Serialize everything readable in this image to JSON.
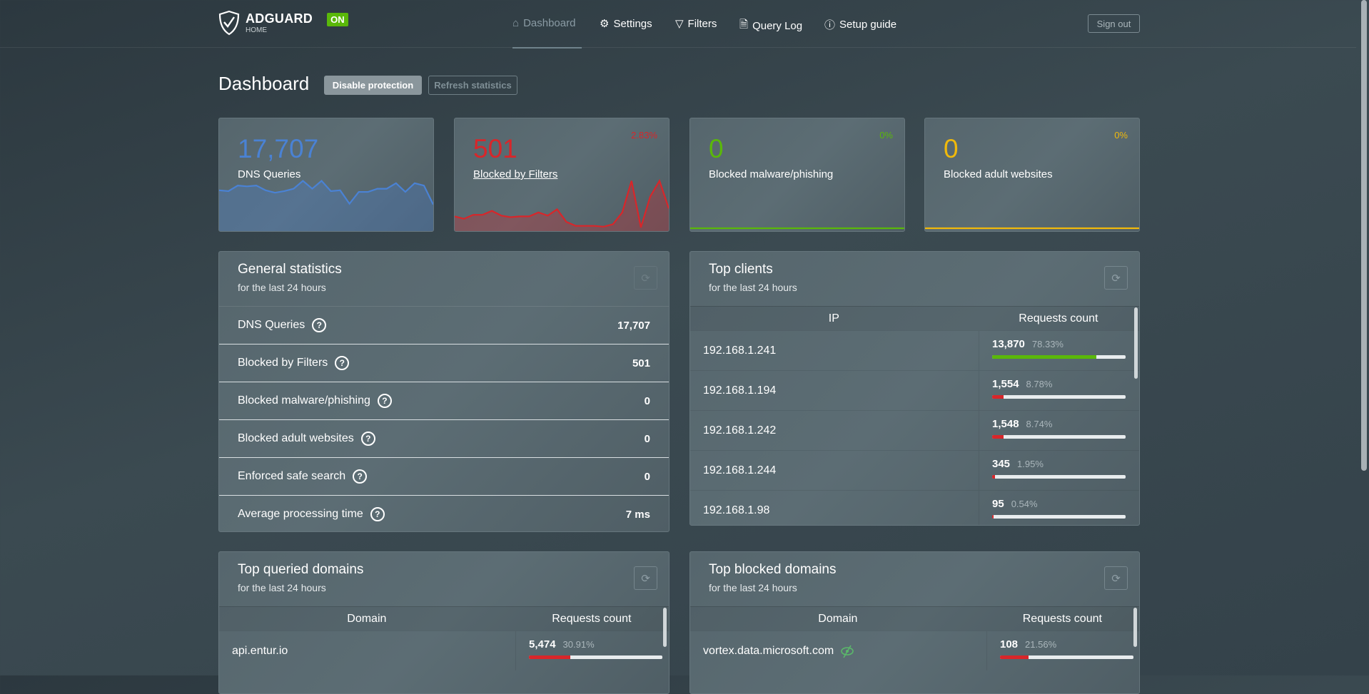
{
  "header": {
    "brand": "ADGUARD",
    "brand_sub": "HOME",
    "status_badge": "ON",
    "nav": [
      {
        "label": "Dashboard",
        "icon": "home-icon"
      },
      {
        "label": "Settings",
        "icon": "gear-icon"
      },
      {
        "label": "Filters",
        "icon": "filter-icon"
      },
      {
        "label": "Query Log",
        "icon": "document-icon"
      },
      {
        "label": "Setup guide",
        "icon": "help-icon"
      }
    ],
    "sign_out": "Sign out"
  },
  "page": {
    "title": "Dashboard",
    "disable_protection": "Disable protection",
    "refresh_statistics": "Refresh statistics"
  },
  "colors": {
    "blue": "#4a82d4",
    "red": "#d8262a",
    "green": "#5ab80a",
    "yellow": "#f0b90b"
  },
  "stats": [
    {
      "value": "17,707",
      "label": "DNS Queries",
      "pct": "",
      "color": "#4a82d4",
      "spark": [
        48,
        47,
        54,
        53,
        54,
        48,
        45,
        47,
        50,
        60,
        50,
        60,
        47,
        48,
        31,
        46,
        46,
        50,
        50,
        57,
        46,
        57,
        54,
        30
      ]
    },
    {
      "value": "501",
      "label": "Blocked by Filters",
      "pct": "2.83%",
      "color": "#d8262a",
      "spark": [
        15,
        12,
        17,
        17,
        22,
        16,
        14,
        15,
        15,
        20,
        16,
        24,
        8,
        3,
        3,
        3,
        2,
        5,
        20,
        60,
        1,
        40,
        60,
        25
      ]
    },
    {
      "value": "0",
      "label": "Blocked malware/phishing",
      "pct": "0%",
      "color": "#5ab80a",
      "spark": [
        0,
        0,
        0,
        0,
        0,
        0,
        0,
        0,
        0,
        0,
        0,
        0,
        0,
        0,
        0,
        0,
        0,
        0,
        0,
        0,
        0,
        0,
        0,
        0
      ]
    },
    {
      "value": "0",
      "label": "Blocked adult websites",
      "pct": "0%",
      "color": "#f0b90b",
      "spark": [
        0,
        0,
        0,
        0,
        0,
        0,
        0,
        0,
        0,
        0,
        0,
        0,
        0,
        0,
        0,
        0,
        0,
        0,
        0,
        0,
        0,
        0,
        0,
        0
      ]
    }
  ],
  "general": {
    "title": "General statistics",
    "subtitle": "for the last 24 hours",
    "rows": [
      {
        "label": "DNS Queries",
        "value": "17,707"
      },
      {
        "label": "Blocked by Filters",
        "value": "501"
      },
      {
        "label": "Blocked malware/phishing",
        "value": "0"
      },
      {
        "label": "Blocked adult websites",
        "value": "0"
      },
      {
        "label": "Enforced safe search",
        "value": "0"
      },
      {
        "label": "Average processing time",
        "value": "7 ms"
      }
    ]
  },
  "clients": {
    "title": "Top clients",
    "subtitle": "for the last 24 hours",
    "col1": "IP",
    "col2": "Requests count",
    "rows": [
      {
        "ip": "192.168.1.241",
        "count": "13,870",
        "pct": "78.33%",
        "fill": 78.33,
        "color": "#5ab80a"
      },
      {
        "ip": "192.168.1.194",
        "count": "1,554",
        "pct": "8.78%",
        "fill": 8.78,
        "color": "#d8262a"
      },
      {
        "ip": "192.168.1.242",
        "count": "1,548",
        "pct": "8.74%",
        "fill": 8.74,
        "color": "#d8262a"
      },
      {
        "ip": "192.168.1.244",
        "count": "345",
        "pct": "1.95%",
        "fill": 1.95,
        "color": "#d8262a"
      },
      {
        "ip": "192.168.1.98",
        "count": "95",
        "pct": "0.54%",
        "fill": 0.54,
        "color": "#d8262a"
      }
    ]
  },
  "queried": {
    "title": "Top queried domains",
    "subtitle": "for the last 24 hours",
    "col1": "Domain",
    "col2": "Requests count",
    "rows": [
      {
        "domain": "api.entur.io",
        "count": "5,474",
        "pct": "30.91%",
        "fill": 30.91,
        "color": "#d8262a"
      }
    ]
  },
  "blocked": {
    "title": "Top blocked domains",
    "subtitle": "for the last 24 hours",
    "col1": "Domain",
    "col2": "Requests count",
    "rows": [
      {
        "domain": "vortex.data.microsoft.com",
        "count": "108",
        "pct": "21.56%",
        "fill": 21.56,
        "color": "#d8262a",
        "icon": "tracker-eye-slash-icon"
      }
    ]
  }
}
